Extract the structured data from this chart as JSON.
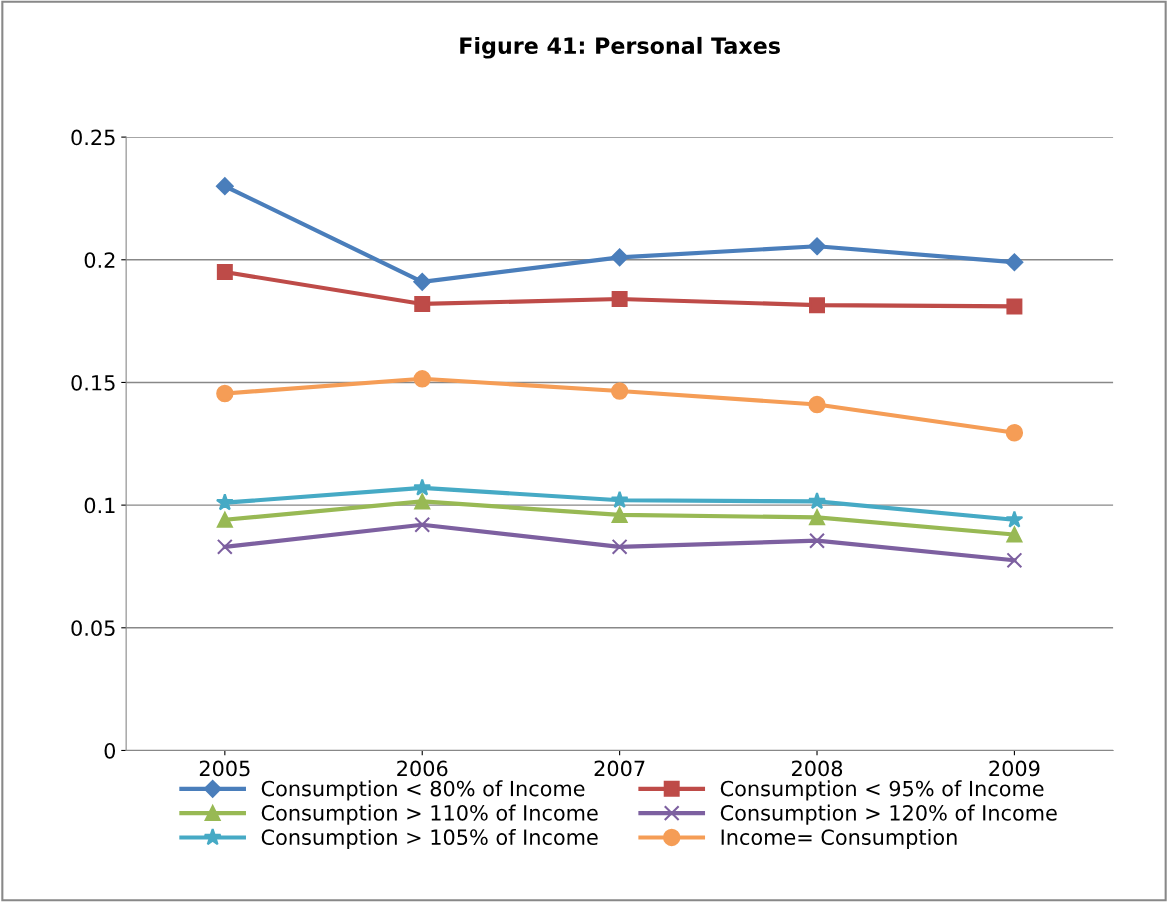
{
  "chart_data": {
    "type": "line",
    "title": "Figure 41: Personal Taxes",
    "categories": [
      "2005",
      "2006",
      "2007",
      "2008",
      "2009"
    ],
    "ylim": [
      0,
      0.25
    ],
    "yticks": [
      {
        "value": 0,
        "label": "0"
      },
      0.05,
      {
        "value": 0.1,
        "label": "0.1"
      },
      0.15,
      {
        "value": 0.2,
        "label": "0.2"
      },
      0.25
    ],
    "grid": "y",
    "legend": "bottom",
    "series": [
      {
        "name": "Consumption < 80% of Income",
        "color": "#4a7ebb",
        "marker": "diamond",
        "values": [
          0.23,
          0.191,
          0.201,
          0.2055,
          0.199
        ]
      },
      {
        "name": "Consumption < 95% of Income",
        "color": "#be4b48",
        "marker": "square",
        "values": [
          0.195,
          0.182,
          0.184,
          0.1815,
          0.181
        ]
      },
      {
        "name": "Consumption > 110% of Income",
        "color": "#98b954",
        "marker": "triangle",
        "values": [
          0.094,
          0.1015,
          0.096,
          0.095,
          0.088
        ]
      },
      {
        "name": "Consumption > 120% of Income",
        "color": "#7d60a0",
        "marker": "cross",
        "values": [
          0.083,
          0.092,
          0.083,
          0.0855,
          0.0775
        ]
      },
      {
        "name": "Consumption > 105% of Income",
        "color": "#46aac5",
        "marker": "star",
        "values": [
          0.101,
          0.107,
          0.102,
          0.1015,
          0.094
        ]
      },
      {
        "name": "Income= Consumption",
        "color": "#f59d56",
        "marker": "circle",
        "values": [
          0.1455,
          0.1515,
          0.1465,
          0.141,
          0.1295
        ]
      }
    ]
  }
}
